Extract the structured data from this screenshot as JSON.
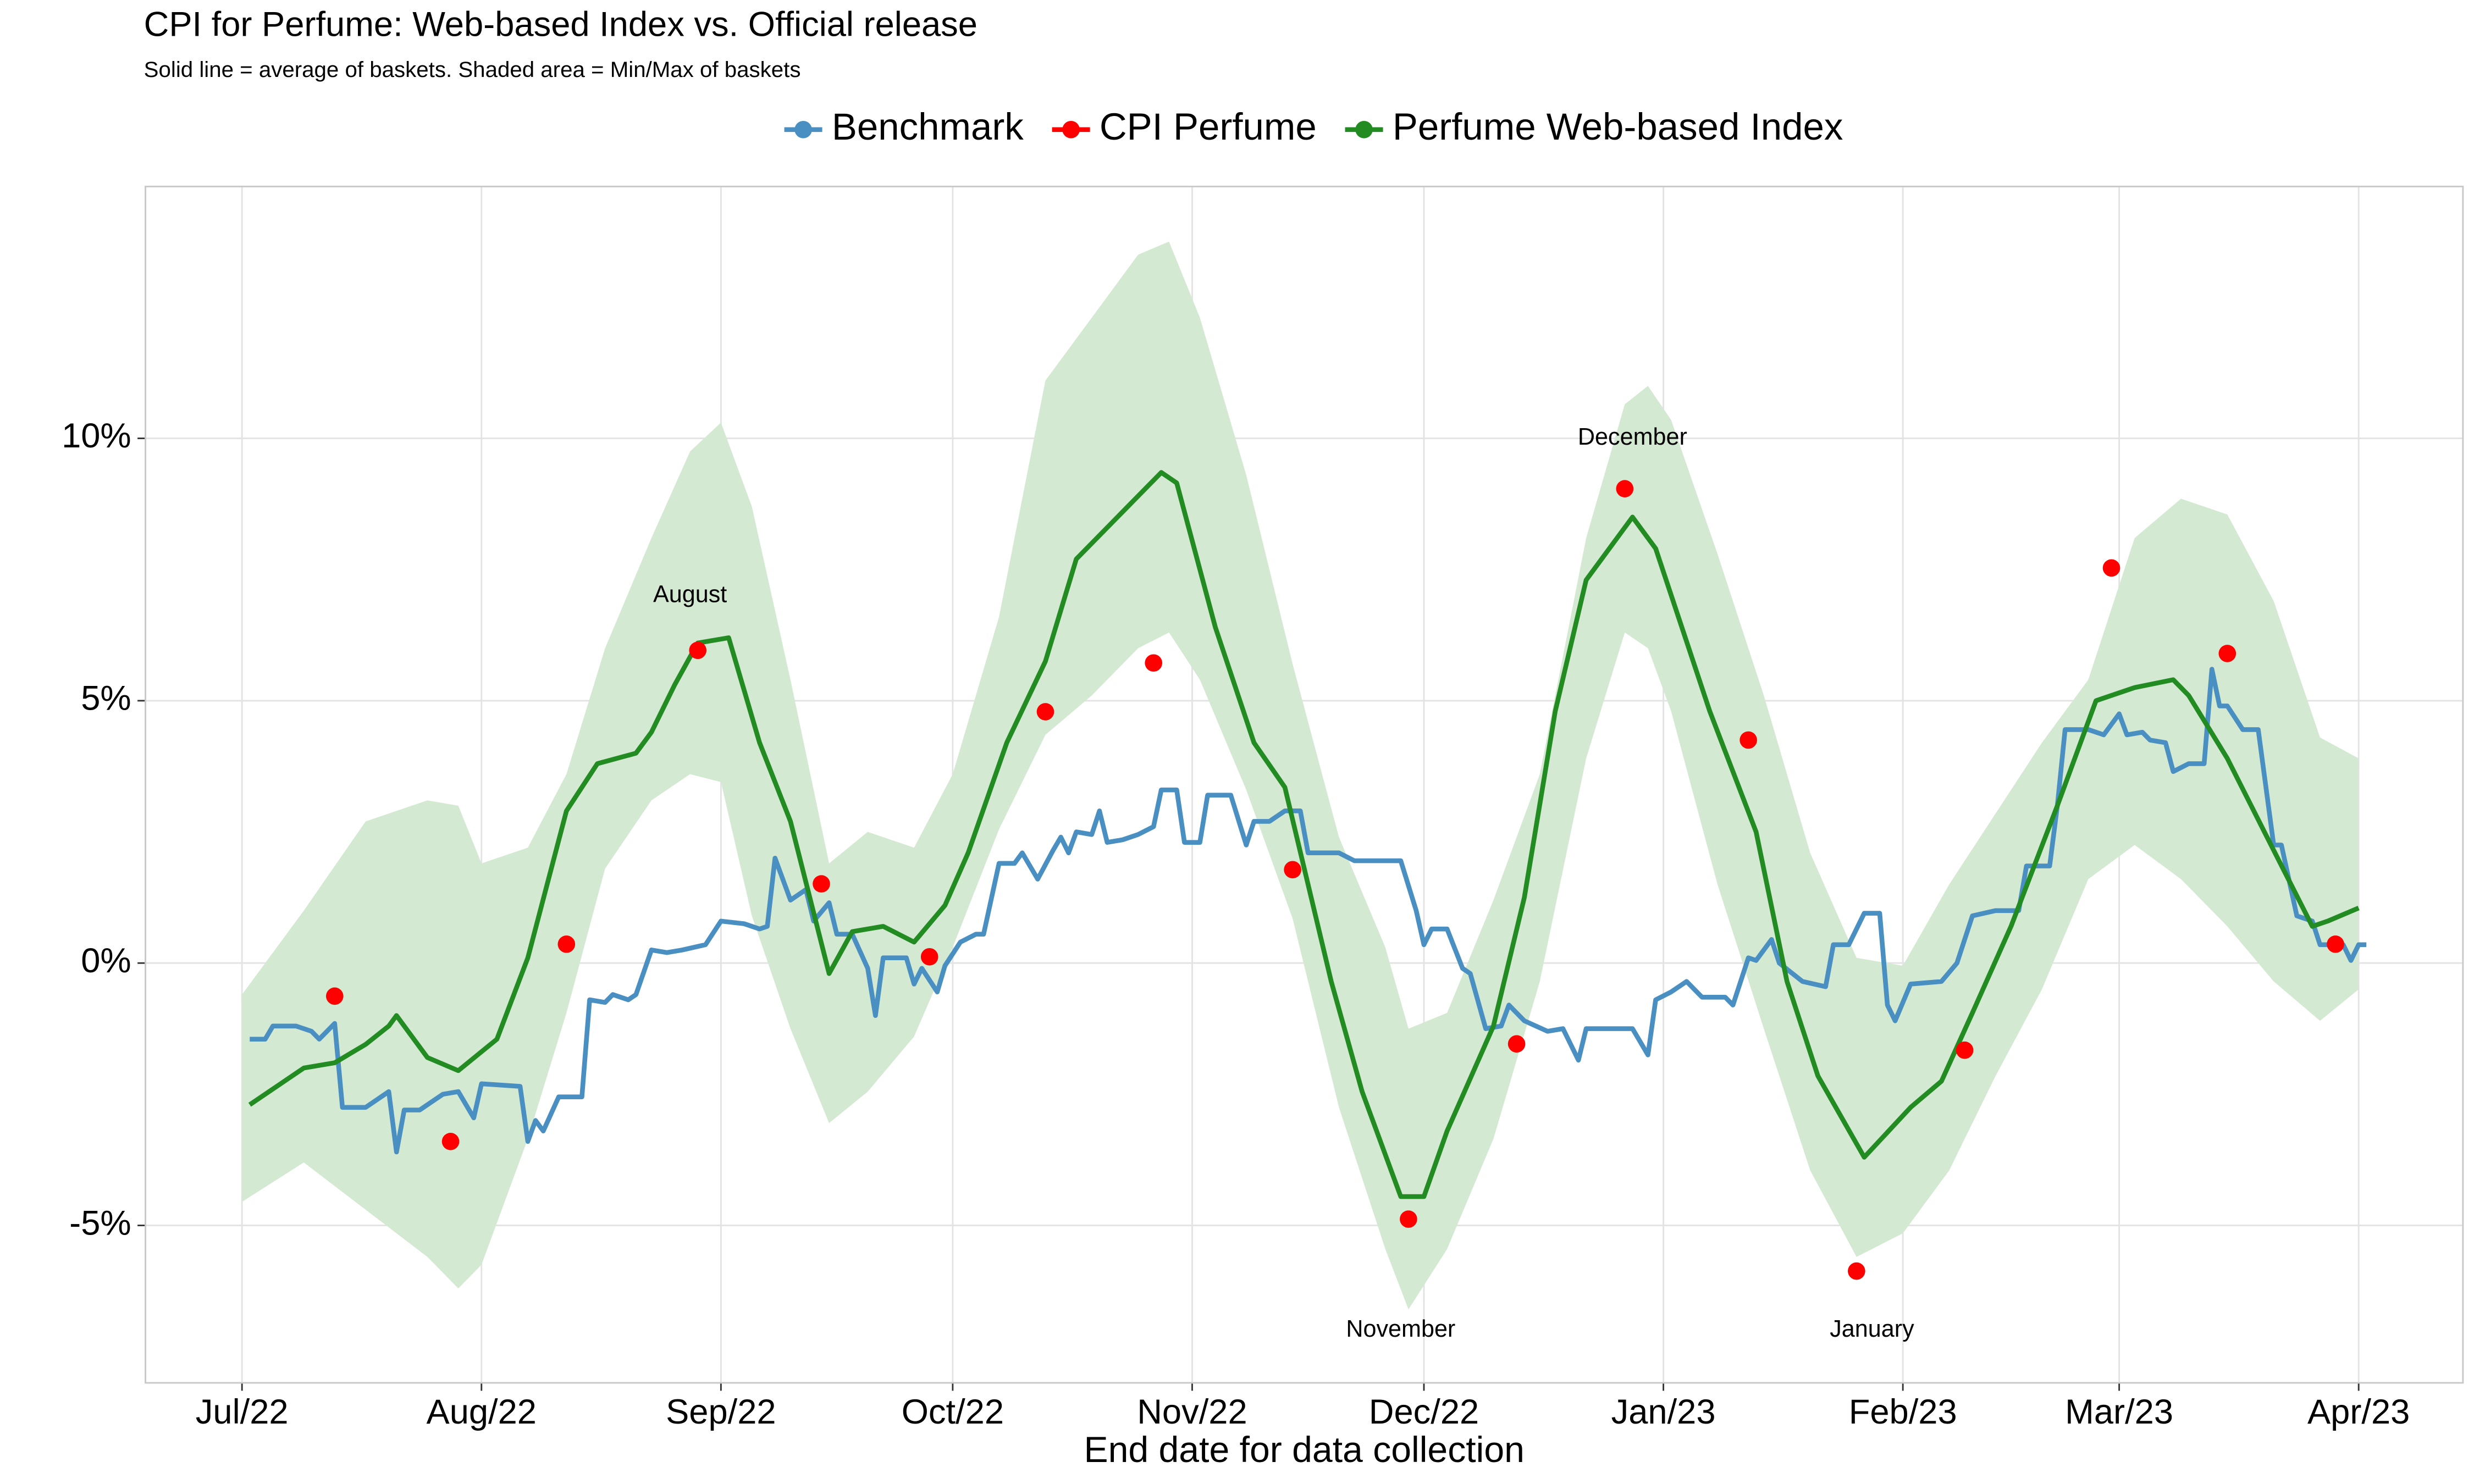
{
  "chart_data": {
    "type": "line",
    "title": "CPI for Perfume: Web-based Index vs. Official release",
    "subtitle": "Solid line = average of baskets. Shaded area = Min/Max of baskets",
    "x_label": "End date for data collection",
    "legend": "top",
    "grid": true,
    "xlim": [
      -12.5,
      287.5
    ],
    "xticks": [
      {
        "value": 0,
        "label": "Jul/22"
      },
      {
        "value": 31,
        "label": "Aug/22"
      },
      {
        "value": 62,
        "label": "Sep/22"
      },
      {
        "value": 92,
        "label": "Oct/22"
      },
      {
        "value": 123,
        "label": "Nov/22"
      },
      {
        "value": 153,
        "label": "Dec/22"
      },
      {
        "value": 184,
        "label": "Jan/23"
      },
      {
        "value": 215,
        "label": "Feb/23"
      },
      {
        "value": 243,
        "label": "Mar/23"
      },
      {
        "value": 274,
        "label": "Apr/23"
      }
    ],
    "ylim": [
      -8,
      14.8
    ],
    "yticks": [
      {
        "value": -5,
        "label": "-5%"
      },
      {
        "value": 0,
        "label": "0%"
      },
      {
        "value": 5,
        "label": "5%"
      },
      {
        "value": 10,
        "label": "10%"
      }
    ],
    "band": {
      "color": "#d4e9d2",
      "x": [
        0,
        8,
        16,
        24,
        28,
        31,
        37,
        42,
        47,
        53,
        58,
        62,
        66,
        71,
        76,
        81,
        87,
        92,
        98,
        104,
        110,
        116,
        120,
        124,
        130,
        136,
        142,
        148,
        151,
        156,
        162,
        168,
        174,
        179,
        182,
        185,
        191,
        197,
        203,
        209,
        215,
        221,
        227,
        233,
        239,
        245,
        251,
        257,
        263,
        269,
        274
      ],
      "upper": [
        -0.6,
        1.0,
        2.7,
        3.1,
        3.0,
        1.9,
        2.2,
        3.6,
        6.0,
        8.1,
        9.75,
        10.3,
        8.7,
        5.4,
        1.9,
        2.5,
        2.2,
        3.6,
        6.6,
        11.1,
        12.3,
        13.5,
        13.75,
        12.3,
        9.3,
        5.7,
        2.4,
        0.3,
        -1.25,
        -0.95,
        1.2,
        3.6,
        8.1,
        10.65,
        11.0,
        10.35,
        7.8,
        5.1,
        2.1,
        0.1,
        -0.05,
        1.5,
        2.85,
        4.2,
        5.4,
        8.1,
        8.85,
        8.55,
        6.9,
        4.3,
        3.9
      ],
      "lower": [
        -4.55,
        -3.8,
        -4.7,
        -5.6,
        -6.2,
        -5.75,
        -3.35,
        -0.95,
        1.8,
        3.1,
        3.6,
        3.45,
        0.9,
        -1.25,
        -3.05,
        -2.45,
        -1.4,
        0.3,
        2.55,
        4.35,
        5.1,
        6.0,
        6.3,
        5.4,
        3.3,
        0.85,
        -2.75,
        -5.45,
        -6.6,
        -5.45,
        -3.35,
        -0.35,
        3.9,
        6.3,
        6.0,
        4.8,
        1.5,
        -1.25,
        -3.95,
        -5.6,
        -5.15,
        -3.95,
        -2.15,
        -0.5,
        1.6,
        2.25,
        1.6,
        0.7,
        -0.35,
        -1.1,
        -0.5
      ]
    },
    "series": [
      {
        "name": "Benchmark",
        "color": "#4a8fc2",
        "mark": "line",
        "x": [
          1,
          3,
          4,
          7,
          9,
          10,
          11,
          12,
          13,
          16,
          19,
          20,
          21,
          23,
          26,
          28,
          30,
          31,
          36,
          37,
          38,
          39,
          41,
          44,
          45,
          47,
          48,
          50,
          51,
          53,
          55,
          57,
          60,
          62,
          65,
          67,
          68,
          69,
          71,
          73,
          74,
          76,
          77,
          79,
          81,
          82,
          83,
          86,
          87,
          88,
          90,
          91,
          93,
          95,
          96,
          98,
          100,
          101,
          103,
          105,
          106,
          107,
          108,
          110,
          111,
          112,
          114,
          116,
          118,
          119,
          121,
          122,
          124,
          125,
          128,
          130,
          131,
          133,
          135,
          137,
          138,
          142,
          144,
          148,
          150,
          152,
          153,
          154,
          156,
          158,
          159,
          161,
          163,
          164,
          166,
          169,
          171,
          173,
          174,
          180,
          182,
          183,
          185,
          187,
          189,
          192,
          193,
          195,
          196,
          198,
          199,
          202,
          205,
          206,
          208,
          210,
          212,
          213,
          214,
          216,
          220,
          222,
          224,
          227,
          230,
          231,
          234,
          235,
          236,
          239,
          241,
          243,
          244,
          246,
          247,
          249,
          250,
          252,
          254,
          255,
          256,
          257,
          259,
          261,
          263,
          264,
          266,
          268,
          269,
          272,
          273,
          274,
          275
        ],
        "values": [
          -1.45,
          -1.45,
          -1.2,
          -1.2,
          -1.3,
          -1.45,
          -1.3,
          -1.15,
          -2.75,
          -2.75,
          -2.45,
          -3.6,
          -2.8,
          -2.8,
          -2.5,
          -2.45,
          -2.95,
          -2.3,
          -2.35,
          -3.4,
          -3.0,
          -3.2,
          -2.55,
          -2.55,
          -0.7,
          -0.75,
          -0.6,
          -0.7,
          -0.6,
          0.25,
          0.2,
          0.25,
          0.35,
          0.8,
          0.75,
          0.65,
          0.7,
          2.0,
          1.2,
          1.4,
          0.8,
          1.15,
          0.55,
          0.55,
          -0.1,
          -1.0,
          0.1,
          0.1,
          -0.4,
          -0.1,
          -0.55,
          -0.05,
          0.4,
          0.55,
          0.55,
          1.9,
          1.9,
          2.1,
          1.6,
          2.15,
          2.4,
          2.1,
          2.5,
          2.45,
          2.9,
          2.3,
          2.35,
          2.45,
          2.6,
          3.3,
          3.3,
          2.3,
          2.3,
          3.2,
          3.2,
          2.25,
          2.7,
          2.7,
          2.9,
          2.9,
          2.1,
          2.1,
          1.95,
          1.95,
          1.95,
          1.0,
          0.35,
          0.65,
          0.65,
          -0.1,
          -0.2,
          -1.25,
          -1.2,
          -0.8,
          -1.1,
          -1.3,
          -1.25,
          -1.85,
          -1.25,
          -1.25,
          -1.75,
          -0.7,
          -0.55,
          -0.35,
          -0.65,
          -0.65,
          -0.8,
          0.1,
          0.05,
          0.45,
          0.0,
          -0.35,
          -0.45,
          0.35,
          0.35,
          0.95,
          0.95,
          -0.8,
          -1.1,
          -0.4,
          -0.35,
          0.0,
          0.9,
          1.0,
          1.0,
          1.85,
          1.85,
          3.0,
          4.45,
          4.45,
          4.35,
          4.75,
          4.35,
          4.4,
          4.25,
          4.2,
          3.65,
          3.8,
          3.8,
          5.6,
          4.9,
          4.9,
          4.45,
          4.45,
          2.25,
          2.25,
          0.9,
          0.8,
          0.35,
          0.35,
          0.05,
          0.35,
          0.35
        ]
      },
      {
        "name": "CPI Perfume",
        "color": "#ff0000",
        "mark": "point",
        "x": [
          12,
          27,
          42,
          59,
          75,
          89,
          104,
          118,
          136,
          151,
          165,
          179,
          195,
          209,
          223,
          242,
          257,
          271
        ],
        "values": [
          -0.63,
          -3.4,
          0.36,
          5.96,
          1.51,
          0.12,
          4.79,
          5.72,
          1.78,
          -4.88,
          -1.54,
          9.04,
          4.25,
          -5.87,
          -1.66,
          7.53,
          5.9,
          0.36
        ]
      },
      {
        "name": "Perfume Web-based Index",
        "color": "#228b22",
        "mark": "line",
        "x": [
          1,
          4,
          8,
          12,
          16,
          19,
          20,
          24,
          28,
          33,
          37,
          42,
          46,
          51,
          53,
          56,
          59,
          63,
          67,
          71,
          76,
          79,
          83,
          87,
          91,
          94,
          99,
          104,
          108,
          114,
          119,
          121,
          126,
          131,
          135,
          141,
          145,
          150,
          153,
          156,
          162,
          166,
          170,
          174,
          180,
          183,
          190,
          196,
          200,
          204,
          210,
          216,
          220,
          224,
          229,
          235,
          240,
          245,
          250,
          252,
          257,
          263,
          268,
          270,
          274
        ],
        "values": [
          -2.7,
          -2.4,
          -2.0,
          -1.9,
          -1.55,
          -1.2,
          -1.0,
          -1.8,
          -2.05,
          -1.45,
          0.1,
          2.9,
          3.8,
          4.0,
          4.4,
          5.3,
          6.1,
          6.2,
          4.2,
          2.7,
          -0.2,
          0.6,
          0.7,
          0.4,
          1.1,
          2.1,
          4.2,
          5.75,
          7.7,
          8.6,
          9.35,
          9.15,
          6.4,
          4.2,
          3.35,
          -0.35,
          -2.45,
          -4.45,
          -4.45,
          -3.2,
          -1.2,
          1.25,
          4.8,
          7.3,
          8.5,
          7.9,
          4.8,
          2.5,
          -0.35,
          -2.15,
          -3.7,
          -2.75,
          -2.25,
          -0.95,
          0.7,
          3.0,
          5.0,
          5.25,
          5.4,
          5.1,
          3.9,
          2.15,
          0.7,
          0.8,
          1.05
        ]
      }
    ],
    "annotations": [
      {
        "text": "August",
        "x": 58,
        "y": 7.0
      },
      {
        "text": "December",
        "x": 180,
        "y": 10.0
      },
      {
        "text": "November",
        "x": 150,
        "y": -7.0
      },
      {
        "text": "January",
        "x": 211,
        "y": -7.0
      }
    ]
  }
}
